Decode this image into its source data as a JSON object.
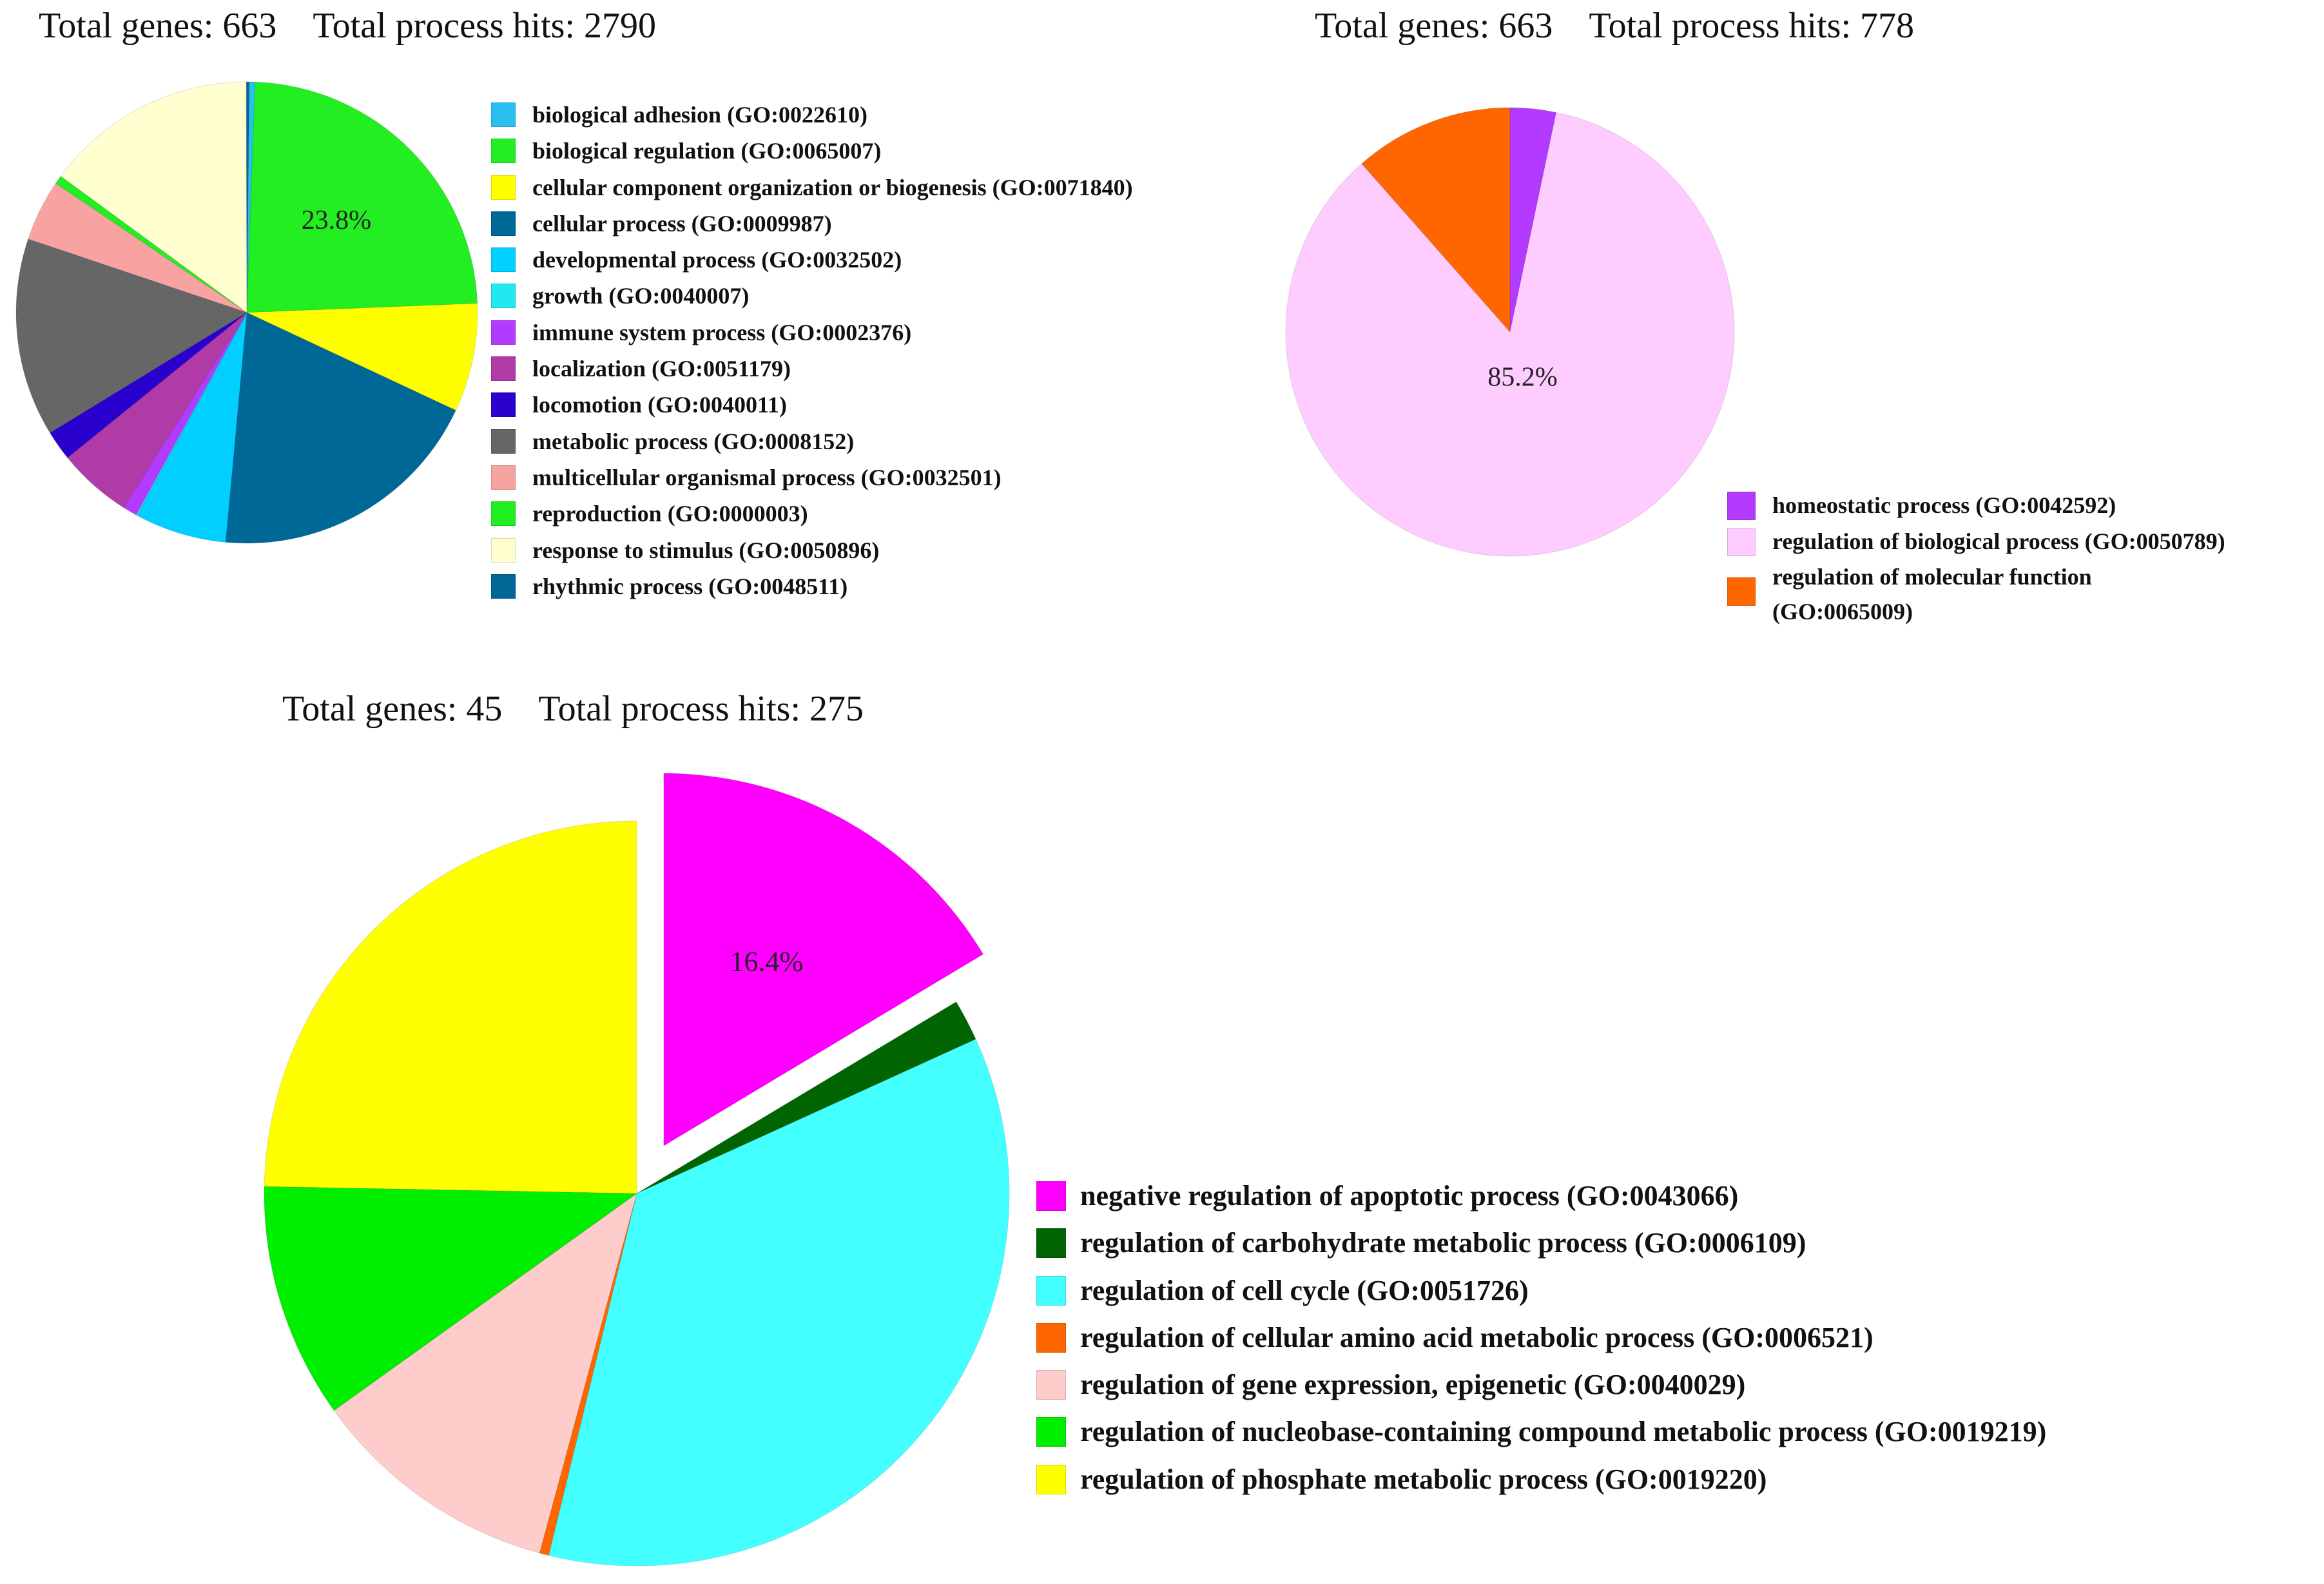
{
  "chart_data": [
    {
      "type": "pie",
      "title": "Total genes: 663    Total process hits: 2790",
      "total_genes_label": "Total genes: 663",
      "total_hits_label": "Total process hits: 2790",
      "slice_label": "23.8%",
      "labels": [
        "biological adhesion (GO:0022610)",
        "biological regulation (GO:0065007)",
        "cellular component organization or biogenesis (GO:0071840)",
        "cellular process (GO:0009987)",
        "developmental process (GO:0032502)",
        "growth (GO:0040007)",
        "immune system process (GO:0002376)",
        "localization (GO:0051179)",
        "locomotion (GO:0040011)",
        "metabolic process (GO:0008152)",
        "multicellular organismal process (GO:0032501)",
        "reproduction (GO:0000003)",
        "response to stimulus (GO:0050896)",
        "rhythmic process (GO:0048511)"
      ],
      "values": [
        0.4,
        23.8,
        7.6,
        19.5,
        6.4,
        0.1,
        1.0,
        5.2,
        2.1,
        13.9,
        4.3,
        0.6,
        14.9,
        0.2
      ],
      "colors": [
        "#29c0ef",
        "#22ee22",
        "#ffff00",
        "#006896",
        "#00cfff",
        "#22e8f0",
        "#b23bff",
        "#b03ba7",
        "#2a00cf",
        "#666666",
        "#f7a3a1",
        "#22ee22",
        "#ffffd0",
        "#006896"
      ]
    },
    {
      "type": "pie",
      "title": "Total genes: 663    Total process hits: 778",
      "total_genes_label": "Total genes: 663",
      "total_hits_label": "Total process hits: 778",
      "slice_label": "85.2%",
      "labels": [
        "homeostatic process (GO:0042592)",
        "regulation of biological process (GO:0050789)",
        "regulation of molecular function (GO:0065009)"
      ],
      "values": [
        3.3,
        85.2,
        11.5
      ],
      "colors": [
        "#b23bff",
        "#ffccff",
        "#ff6600"
      ]
    },
    {
      "type": "pie",
      "title": "Total genes: 45    Total process hits: 275",
      "total_genes_label": "Total genes: 45",
      "total_hits_label": "Total process hits: 275",
      "slice_label": "16.4%",
      "labels": [
        "negative regulation of apoptotic process (GO:0043066)",
        "regulation of carbohydrate metabolic process (GO:0006109)",
        "regulation of cell cycle (GO:0051726)",
        "regulation of cellular amino acid metabolic process (GO:0006521)",
        "regulation of gene expression, epigenetic (GO:0040029)",
        "regulation of nucleobase-containing compound metabolic process (GO:0019219)",
        "regulation of phosphate metabolic process (GO:0019220)"
      ],
      "values": [
        16.4,
        1.8,
        35.6,
        0.4,
        10.9,
        10.2,
        24.7
      ],
      "colors": [
        "#ff00ff",
        "#006400",
        "#44ffff",
        "#ff6600",
        "#ffcccc",
        "#00ee00",
        "#ffff00"
      ],
      "exploded": [
        0
      ]
    }
  ]
}
